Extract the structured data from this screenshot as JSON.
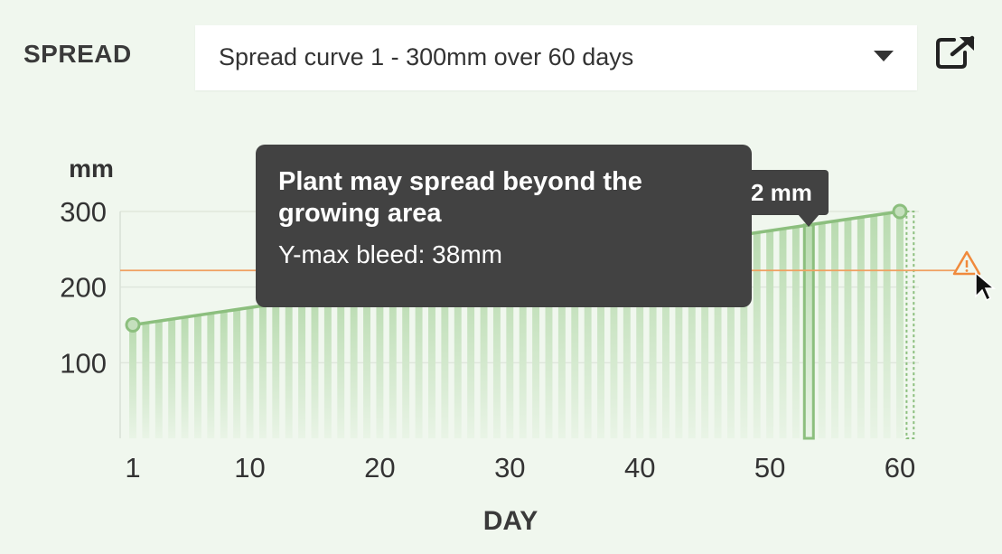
{
  "header": {
    "spread_label": "SPREAD",
    "select_value": "Spread curve 1 - 300mm over 60 days",
    "open_icon": "external-link-icon"
  },
  "tooltip": {
    "title": "Plant may spread beyond the growing area",
    "body": "Y-max bleed: 38mm"
  },
  "value_tooltip": {
    "text": "2 mm"
  },
  "warning_icon": "warning-triangle-icon",
  "colors": {
    "line": "#8cbf7e",
    "fill_top": "#b9dbb0",
    "fill_bottom": "#e9f4e6",
    "threshold": "#f0a060",
    "warning": "#f08a3c",
    "tooltip_bg": "#424242"
  },
  "chart_data": {
    "type": "area",
    "ylabel": "mm",
    "xlabel": "DAY",
    "xlim": [
      1,
      61
    ],
    "ylim": [
      0,
      300
    ],
    "x_ticks": [
      1,
      10,
      20,
      30,
      40,
      50,
      60
    ],
    "y_ticks": [
      100,
      200,
      300
    ],
    "grid": true,
    "series": [
      {
        "x": [
          1,
          60
        ],
        "values": [
          150,
          300
        ]
      }
    ],
    "threshold": {
      "value": 222
    },
    "highlight_day": 53
  }
}
